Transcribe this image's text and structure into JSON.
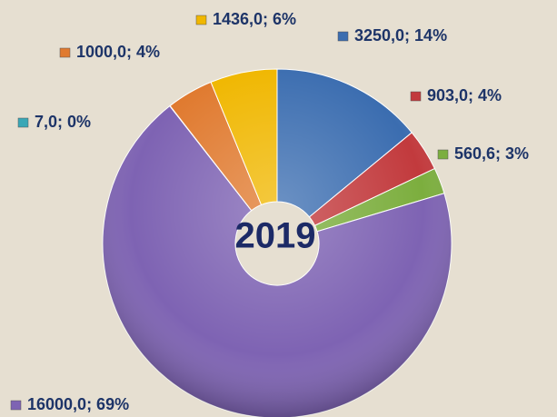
{
  "chart_data": {
    "type": "doughnut",
    "title": "2019",
    "categories": [
      "3250",
      "903",
      "560,6",
      "16000",
      "7",
      "1000",
      "1436"
    ],
    "series": [
      {
        "name": "2019",
        "values": [
          3250,
          903,
          560.6,
          16000,
          7,
          1000,
          1436
        ],
        "value_labels": [
          "3250,0; 14%",
          "903,0; 4%",
          "560,6; 3%",
          "16000,0; 69%",
          "7,0; 0%",
          "1000,0; 4%",
          "1436,0; 6%"
        ],
        "colors": [
          "#3b6db0",
          "#c23a3d",
          "#7cae3e",
          "#7e63b3",
          "#3aa7b6",
          "#e07a2f",
          "#f0b700"
        ]
      }
    ]
  }
}
